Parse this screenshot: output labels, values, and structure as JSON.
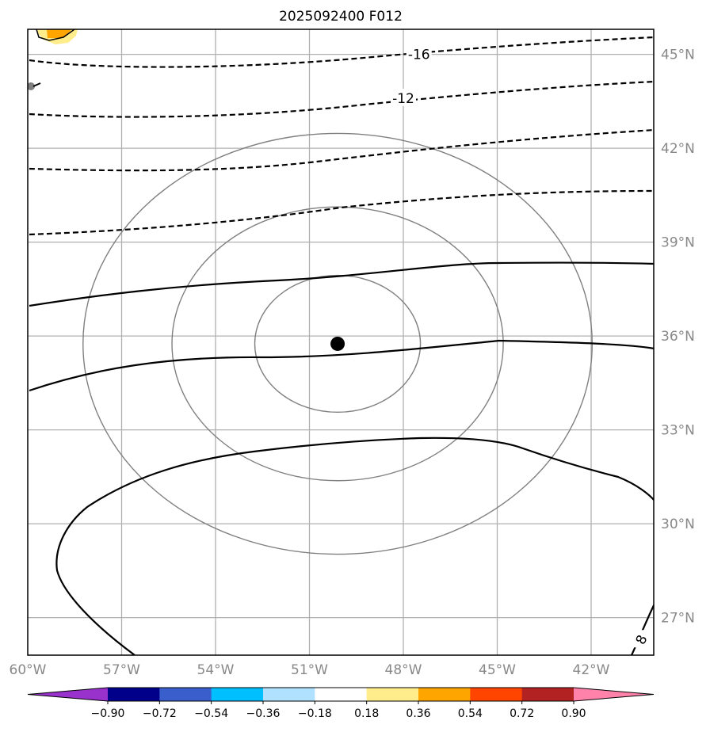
{
  "title": "2025092400 F012",
  "chart_data": {
    "type": "map",
    "title": "2025092400 F012",
    "lon_range": [
      -60,
      -40
    ],
    "lat_range": [
      25.8,
      45.8
    ],
    "xticks": [
      {
        "lon": -60,
        "label": "60°W"
      },
      {
        "lon": -57,
        "label": "57°W"
      },
      {
        "lon": -54,
        "label": "54°W"
      },
      {
        "lon": -51,
        "label": "51°W"
      },
      {
        "lon": -48,
        "label": "48°W"
      },
      {
        "lon": -45,
        "label": "45°W"
      },
      {
        "lon": -42,
        "label": "42°W"
      }
    ],
    "yticks": [
      {
        "lat": 45,
        "label": "45°N"
      },
      {
        "lat": 42,
        "label": "42°N"
      },
      {
        "lat": 39,
        "label": "39°N"
      },
      {
        "lat": 36,
        "label": "36°N"
      },
      {
        "lat": 33,
        "label": "33°N"
      },
      {
        "lat": 30,
        "label": "30°N"
      },
      {
        "lat": 27,
        "label": "27°N"
      }
    ],
    "center": {
      "lon": -50.1,
      "lat": 35.75
    },
    "range_rings_deg": [
      2.7,
      5.4,
      8.3
    ],
    "contour_labels": [
      {
        "text": "-16",
        "lon": -47.5,
        "lat": 45.0
      },
      {
        "text": "-12",
        "lon": -48.0,
        "lat": 43.6
      },
      {
        "text": "8",
        "lon": -40.4,
        "lat": 26.3
      }
    ],
    "colorbar": {
      "ticks": [
        "−0.90",
        "−0.72",
        "−0.54",
        "−0.36",
        "−0.18",
        "0.18",
        "0.36",
        "0.54",
        "0.72",
        "0.90"
      ],
      "colors": [
        "#9932cc",
        "#00008b",
        "#3a5fcd",
        "#00bfff",
        "#b0e2ff",
        "#ffffff",
        "#ffec8b",
        "#ffa500",
        "#ff4500",
        "#b22222",
        "#ff82ab"
      ],
      "extend": "both"
    }
  }
}
